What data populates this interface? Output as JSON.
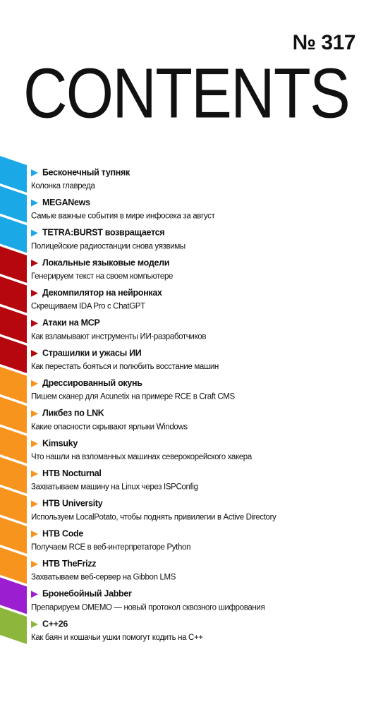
{
  "header": {
    "issue": "№ 317",
    "title": "CONTENTS"
  },
  "items": [
    {
      "title": "Бесконечный тупняк",
      "subtitle": "Колонка главреда",
      "color": "#1aa9e6"
    },
    {
      "title": "MEGANews",
      "subtitle": "Самые важные события в мире инфосека за август",
      "color": "#1aa9e6"
    },
    {
      "title": "TETRA:BURST возвращается",
      "subtitle": "Полицейские радиостанции снова уязвимы",
      "color": "#1aa9e6"
    },
    {
      "title": "Локальные языковые модели",
      "subtitle": "Генерируем текст на своем компьютере",
      "color": "#b5070d"
    },
    {
      "title": "Декомпилятор на нейронках",
      "subtitle": "Скрещиваем IDA Pro с ChatGPT",
      "color": "#b5070d"
    },
    {
      "title": "Атаки на MCP",
      "subtitle": "Как взламывают инструменты ИИ-разработчиков",
      "color": "#b5070d"
    },
    {
      "title": "Страшилки и ужасы ИИ",
      "subtitle": "Как перестать бояться и полюбить восстание машин",
      "color": "#b5070d"
    },
    {
      "title": "Дрессированный окунь",
      "subtitle": "Пишем сканер для Acunetix на примере RCE в Craft CMS",
      "color": "#f7941d"
    },
    {
      "title": "Ликбез по LNK",
      "subtitle": "Какие опасности скрывают ярлыки Windows",
      "color": "#f7941d"
    },
    {
      "title": "Kimsuky",
      "subtitle": "Что нашли на взломанных машинах северокорейского хакера",
      "color": "#f7941d"
    },
    {
      "title": "HTB Nocturnal",
      "subtitle": "Захватываем машину на Linux через ISPConfig",
      "color": "#f7941d"
    },
    {
      "title": "HTB University",
      "subtitle": "Используем LocalPotato, чтобы поднять привилегии в Active Directory",
      "color": "#f7941d"
    },
    {
      "title": "HTB Code",
      "subtitle": "Получаем RCE в веб-интерпретаторе Python",
      "color": "#f7941d"
    },
    {
      "title": "HTB TheFrizz",
      "subtitle": "Захватываем веб-сервер на Gibbon LMS",
      "color": "#f7941d"
    },
    {
      "title": "Бронебойный Jabber",
      "subtitle": "Препарируем OMEMO — новый протокол сквозного шифрования",
      "color": "#9b1fd1"
    },
    {
      "title": "C++26",
      "subtitle": "Как баян и кошачьи ушки помогут кодить на C++",
      "color": "#8cb63c"
    }
  ]
}
